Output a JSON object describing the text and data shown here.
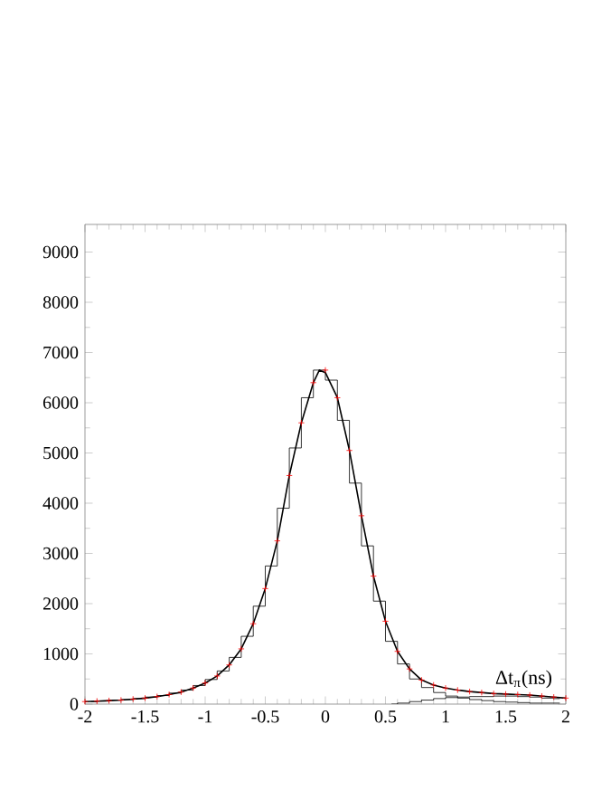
{
  "chart_data": {
    "type": "line",
    "xlabel": "Δt$_{π}$(ns)",
    "xlim": [
      -2,
      2
    ],
    "ylim": [
      0,
      9550
    ],
    "xticks": [
      -2,
      -1.5,
      -1,
      -0.5,
      0,
      0.5,
      1,
      1.5,
      2
    ],
    "yticks": [
      0,
      1000,
      2000,
      3000,
      4000,
      5000,
      6000,
      7000,
      8000,
      9000
    ],
    "series": [
      {
        "type": "step",
        "color": "#000000",
        "x": [
          -1.95,
          -1.85,
          -1.75,
          -1.65,
          -1.55,
          -1.45,
          -1.35,
          -1.25,
          -1.15,
          -1.05,
          -0.95,
          -0.85,
          -0.75,
          -0.65,
          -0.55,
          -0.45,
          -0.35,
          -0.25,
          -0.15,
          -0.05,
          0.05,
          0.15,
          0.25,
          0.35,
          0.45,
          0.55,
          0.65,
          0.75,
          0.85,
          0.95,
          1.05,
          1.15,
          1.25,
          1.35,
          1.45,
          1.55,
          1.65,
          1.75,
          1.85,
          1.95
        ],
        "values": [
          50,
          60,
          80,
          90,
          110,
          140,
          170,
          220,
          280,
          370,
          490,
          660,
          930,
          1350,
          1950,
          2750,
          3900,
          5100,
          6100,
          6650,
          6450,
          5650,
          4400,
          3150,
          2050,
          1250,
          800,
          500,
          330,
          230,
          160,
          120,
          90,
          70,
          50,
          40,
          30,
          20,
          20,
          20
        ]
      },
      {
        "type": "step",
        "color": "#000000",
        "x": [
          0.55,
          0.65,
          0.75,
          0.85,
          0.95,
          1.05,
          1.15,
          1.25,
          1.35,
          1.45,
          1.55,
          1.65,
          1.75,
          1.85,
          1.95
        ],
        "values": [
          0,
          20,
          50,
          80,
          110,
          130,
          140,
          150,
          150,
          160,
          160,
          150,
          140,
          120,
          110
        ]
      },
      {
        "color": "#000000",
        "x": [
          -2,
          -1.9,
          -1.8,
          -1.7,
          -1.6,
          -1.5,
          -1.4,
          -1.3,
          -1.2,
          -1.1,
          -1,
          -0.9,
          -0.8,
          -0.7,
          -0.6,
          -0.5,
          -0.4,
          -0.3,
          -0.2,
          -0.1,
          -0.05,
          0,
          0.1,
          0.2,
          0.3,
          0.4,
          0.5,
          0.6,
          0.7,
          0.8,
          0.9,
          1,
          1.1,
          1.2,
          1.3,
          1.4,
          1.5,
          1.6,
          1.7,
          1.8,
          1.9,
          2
        ],
        "values": [
          50,
          60,
          70,
          80,
          100,
          120,
          150,
          190,
          240,
          320,
          420,
          560,
          780,
          1100,
          1600,
          2300,
          3250,
          4550,
          5600,
          6400,
          6650,
          6600,
          6100,
          5050,
          3750,
          2550,
          1650,
          1050,
          700,
          480,
          380,
          320,
          280,
          250,
          230,
          210,
          200,
          190,
          180,
          160,
          140,
          120
        ]
      },
      {
        "type": "scatter",
        "color": "#ff0000",
        "marker": "cross",
        "x": [
          -2,
          -1.9,
          -1.8,
          -1.7,
          -1.6,
          -1.5,
          -1.4,
          -1.3,
          -1.2,
          -1.1,
          -1,
          -0.9,
          -0.8,
          -0.7,
          -0.6,
          -0.5,
          -0.4,
          -0.3,
          -0.2,
          -0.1,
          0,
          0.1,
          0.2,
          0.3,
          0.4,
          0.5,
          0.6,
          0.7,
          0.8,
          0.9,
          1,
          1.1,
          1.2,
          1.3,
          1.4,
          1.5,
          1.6,
          1.7,
          1.8,
          1.9,
          2
        ],
        "values": [
          50,
          60,
          70,
          80,
          100,
          120,
          150,
          190,
          240,
          320,
          420,
          560,
          780,
          1100,
          1600,
          2300,
          3250,
          4550,
          5600,
          6400,
          6650,
          6100,
          5050,
          3750,
          2550,
          1650,
          1050,
          700,
          480,
          380,
          320,
          280,
          250,
          230,
          210,
          200,
          190,
          180,
          160,
          140,
          120
        ]
      }
    ]
  }
}
